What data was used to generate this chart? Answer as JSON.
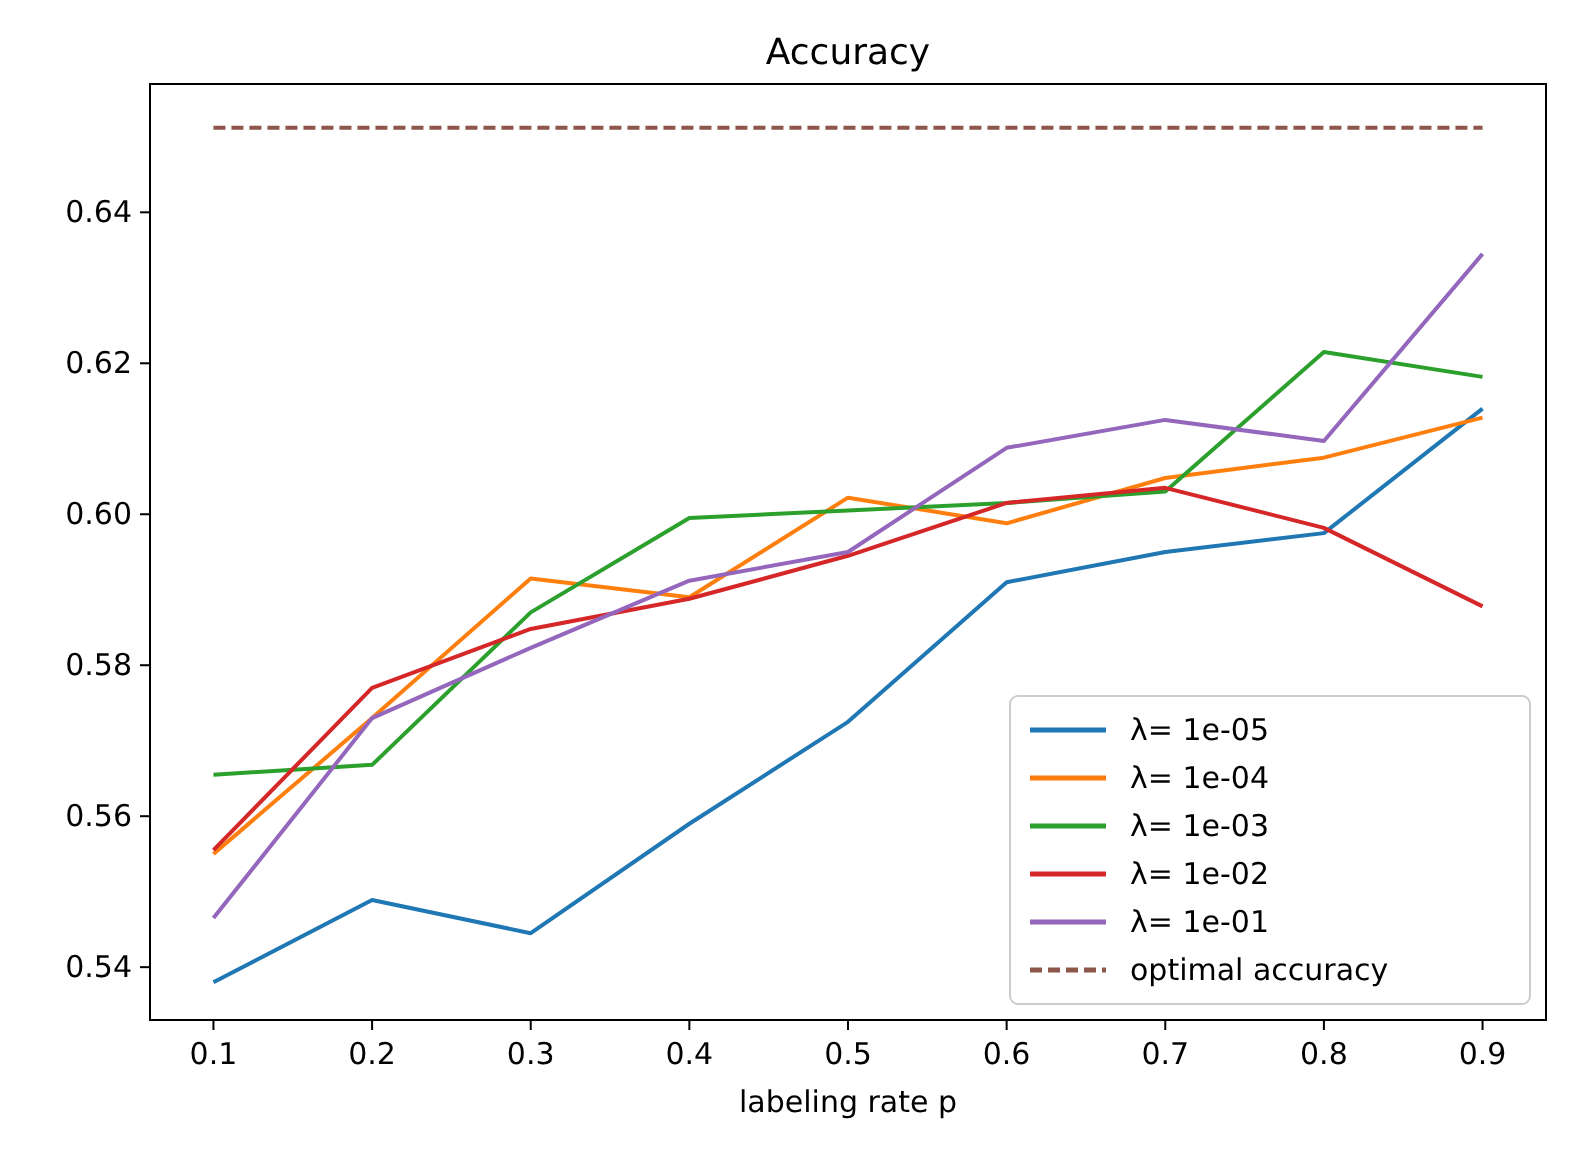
{
  "chart_data": {
    "type": "line",
    "title": "Accuracy",
    "xlabel": "labeling rate p",
    "x": [
      0.1,
      0.2,
      0.3,
      0.4,
      0.5,
      0.6,
      0.7,
      0.8,
      0.9
    ],
    "series": [
      {
        "name": "λ= 1e-05",
        "color": "#1f77b4",
        "values": [
          0.538,
          0.5489,
          0.5445,
          0.559,
          0.5725,
          0.591,
          0.595,
          0.5975,
          0.614
        ]
      },
      {
        "name": "λ= 1e-04",
        "color": "#ff7f0e",
        "values": [
          0.555,
          0.573,
          0.5915,
          0.589,
          0.6022,
          0.5988,
          0.6048,
          0.6075,
          0.6128
        ]
      },
      {
        "name": "λ= 1e-03",
        "color": "#2ca02c",
        "values": [
          0.5655,
          0.5668,
          0.587,
          0.5995,
          0.6005,
          0.6015,
          0.603,
          0.6215,
          0.6182
        ]
      },
      {
        "name": "λ= 1e-02",
        "color": "#d62728",
        "values": [
          0.5555,
          0.577,
          0.5848,
          0.5888,
          0.5945,
          0.6015,
          0.6035,
          0.5982,
          0.5878
        ]
      },
      {
        "name": "λ= 1e-01",
        "color": "#9467bd",
        "values": [
          0.5465,
          0.573,
          0.5823,
          0.5912,
          0.595,
          0.6088,
          0.6125,
          0.6097,
          0.6345
        ]
      },
      {
        "name": "optimal accuracy",
        "color": "#8c564b",
        "line_style": "dashed",
        "values": [
          0.6512,
          0.6512,
          0.6512,
          0.6512,
          0.6512,
          0.6512,
          0.6512,
          0.6512,
          0.6512
        ]
      }
    ],
    "xlim": [
      0.06,
      0.94
    ],
    "ylim": [
      0.533,
      0.657
    ],
    "xticks": [
      0.1,
      0.2,
      0.3,
      0.4,
      0.5,
      0.6,
      0.7,
      0.8,
      0.9
    ],
    "yticks": [
      {
        "value": 0.54,
        "label": "0.54"
      },
      {
        "value": 0.56,
        "label": "0.56"
      },
      {
        "value": 0.58,
        "label": "0.58"
      },
      {
        "value": 0.6,
        "label": "0.60"
      },
      {
        "value": 0.62,
        "label": "0.62"
      },
      {
        "value": 0.64,
        "label": "0.64"
      }
    ],
    "grid": false,
    "legend": "bottom right",
    "marker": "none",
    "line_style": "solid"
  }
}
